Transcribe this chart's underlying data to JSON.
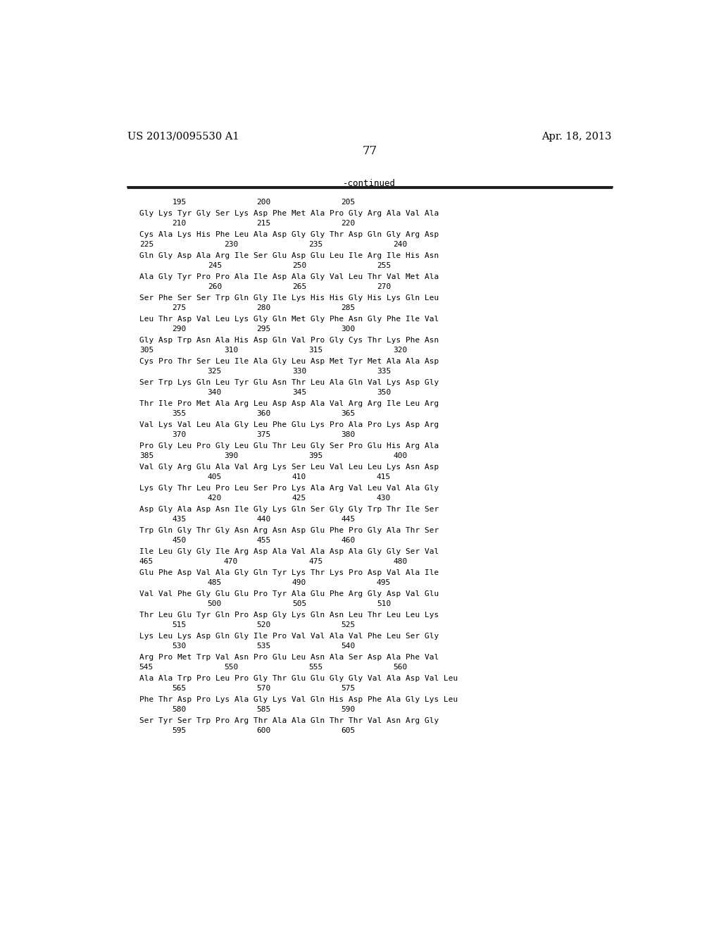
{
  "header_left": "US 2013/0095530 A1",
  "header_right": "Apr. 18, 2013",
  "page_number": "77",
  "continued_label": "-continued",
  "background_color": "#ffffff",
  "text_color": "#000000",
  "sequence_blocks": [
    {
      "aa": "Gly Lys Tyr Gly Ser Lys Asp Phe Met Ala Pro Gly Arg Ala Val Ala",
      "nums": [
        [
          "210",
          1
        ],
        [
          "215",
          5
        ],
        [
          "220",
          9
        ]
      ]
    },
    {
      "aa": "Cys Ala Lys His Phe Leu Ala Asp Gly Gly Thr Asp Gln Gly Arg Asp",
      "nums": [
        [
          "225",
          0
        ],
        [
          "230",
          4
        ],
        [
          "235",
          8
        ],
        [
          "240",
          12
        ]
      ]
    },
    {
      "aa": "Gln Gly Asp Ala Arg Ile Ser Glu Asp Glu Leu Ile Arg Ile His Asn",
      "nums": [
        [
          "245",
          2
        ],
        [
          "250",
          6
        ],
        [
          "255",
          10
        ]
      ]
    },
    {
      "aa": "Ala Gly Tyr Pro Pro Ala Ile Asp Ala Gly Val Leu Thr Val Met Ala",
      "nums": [
        [
          "260",
          2
        ],
        [
          "265",
          6
        ],
        [
          "270",
          10
        ]
      ]
    },
    {
      "aa": "Ser Phe Ser Ser Trp Gln Gly Ile Lys His His Gly His Lys Gln Leu",
      "nums": [
        [
          "275",
          1
        ],
        [
          "280",
          5
        ],
        [
          "285",
          9
        ]
      ]
    },
    {
      "aa": "Leu Thr Asp Val Leu Lys Gly Gln Met Gly Phe Asn Gly Phe Ile Val",
      "nums": [
        [
          "290",
          1
        ],
        [
          "295",
          5
        ],
        [
          "300",
          9
        ]
      ]
    },
    {
      "aa": "Gly Asp Trp Asn Ala His Asp Gln Val Pro Gly Cys Thr Lys Phe Asn",
      "nums": [
        [
          "305",
          0
        ],
        [
          "310",
          4
        ],
        [
          "315",
          8
        ],
        [
          "320",
          12
        ]
      ]
    },
    {
      "aa": "Cys Pro Thr Ser Leu Ile Ala Gly Leu Asp Met Tyr Met Ala Ala Asp",
      "nums": [
        [
          "325",
          2
        ],
        [
          "330",
          6
        ],
        [
          "335",
          10
        ]
      ]
    },
    {
      "aa": "Ser Trp Lys Gln Leu Tyr Glu Asn Thr Leu Ala Gln Val Lys Asp Gly",
      "nums": [
        [
          "340",
          2
        ],
        [
          "345",
          6
        ],
        [
          "350",
          10
        ]
      ]
    },
    {
      "aa": "Thr Ile Pro Met Ala Arg Leu Asp Asp Ala Val Arg Arg Ile Leu Arg",
      "nums": [
        [
          "355",
          1
        ],
        [
          "360",
          5
        ],
        [
          "365",
          9
        ]
      ]
    },
    {
      "aa": "Val Lys Val Leu Ala Gly Leu Phe Glu Lys Pro Ala Pro Lys Asp Arg",
      "nums": [
        [
          "370",
          1
        ],
        [
          "375",
          5
        ],
        [
          "380",
          9
        ]
      ]
    },
    {
      "aa": "Pro Gly Leu Pro Gly Leu Glu Thr Leu Gly Ser Pro Glu His Arg Ala",
      "nums": [
        [
          "385",
          0
        ],
        [
          "390",
          4
        ],
        [
          "395",
          8
        ],
        [
          "400",
          12
        ]
      ]
    },
    {
      "aa": "Val Gly Arg Glu Ala Val Arg Lys Ser Leu Val Leu Leu Lys Asn Asp",
      "nums": [
        [
          "405",
          2
        ],
        [
          "410",
          6
        ],
        [
          "415",
          10
        ]
      ]
    },
    {
      "aa": "Lys Gly Thr Leu Pro Leu Ser Pro Lys Ala Arg Val Leu Val Ala Gly",
      "nums": [
        [
          "420",
          2
        ],
        [
          "425",
          6
        ],
        [
          "430",
          10
        ]
      ]
    },
    {
      "aa": "Asp Gly Ala Asp Asn Ile Gly Lys Gln Ser Gly Gly Trp Thr Ile Ser",
      "nums": [
        [
          "435",
          1
        ],
        [
          "440",
          5
        ],
        [
          "445",
          9
        ]
      ]
    },
    {
      "aa": "Trp Gln Gly Thr Gly Asn Arg Asn Asp Glu Phe Pro Gly Ala Thr Ser",
      "nums": [
        [
          "450",
          1
        ],
        [
          "455",
          5
        ],
        [
          "460",
          9
        ]
      ]
    },
    {
      "aa": "Ile Leu Gly Gly Ile Arg Asp Ala Val Ala Asp Ala Gly Gly Ser Val",
      "nums": [
        [
          "465",
          0
        ],
        [
          "470",
          4
        ],
        [
          "475",
          8
        ],
        [
          "480",
          12
        ]
      ]
    },
    {
      "aa": "Glu Phe Asp Val Ala Gly Gln Tyr Lys Thr Lys Pro Asp Val Ala Ile",
      "nums": [
        [
          "485",
          2
        ],
        [
          "490",
          6
        ],
        [
          "495",
          10
        ]
      ]
    },
    {
      "aa": "Val Val Phe Gly Glu Glu Pro Tyr Ala Glu Phe Arg Gly Asp Val Glu",
      "nums": [
        [
          "500",
          2
        ],
        [
          "505",
          6
        ],
        [
          "510",
          10
        ]
      ]
    },
    {
      "aa": "Thr Leu Glu Tyr Gln Pro Asp Gly Lys Gln Asn Leu Thr Leu Leu Lys",
      "nums": [
        [
          "515",
          1
        ],
        [
          "520",
          5
        ],
        [
          "525",
          9
        ]
      ]
    },
    {
      "aa": "Lys Leu Lys Asp Gln Gly Ile Pro Val Val Ala Val Phe Leu Ser Gly",
      "nums": [
        [
          "530",
          1
        ],
        [
          "535",
          5
        ],
        [
          "540",
          9
        ]
      ]
    },
    {
      "aa": "Arg Pro Met Trp Val Asn Pro Glu Leu Asn Ala Ser Asp Ala Phe Val",
      "nums": [
        [
          "545",
          0
        ],
        [
          "550",
          4
        ],
        [
          "555",
          8
        ],
        [
          "560",
          12
        ]
      ]
    },
    {
      "aa": "Ala Ala Trp Pro Leu Pro Gly Thr Glu Gly Gly Gly Val Ala Asp Val Leu",
      "nums": [
        [
          "565",
          1
        ],
        [
          "570",
          5
        ],
        [
          "575",
          9
        ]
      ]
    },
    {
      "aa": "Phe Thr Asp Pro Lys Ala Gly Lys Val Gln His Asp Phe Ala Gly Lys Leu",
      "nums": [
        [
          "580",
          1
        ],
        [
          "585",
          5
        ],
        [
          "590",
          9
        ]
      ]
    },
    {
      "aa": "Ser Tyr Ser Trp Pro Arg Thr Ala Ala Gln Thr Thr Val Asn Arg Gly",
      "nums": [
        [
          "595",
          1
        ],
        [
          "600",
          5
        ],
        [
          "605",
          9
        ]
      ]
    }
  ],
  "num_row_labels": [
    [
      "195",
      1
    ],
    [
      "200",
      5
    ],
    [
      "205",
      9
    ]
  ]
}
